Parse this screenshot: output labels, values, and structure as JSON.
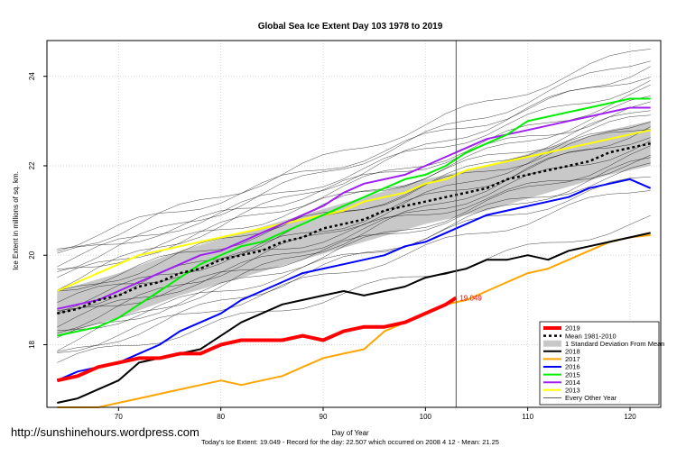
{
  "watermark": "http://sunshinehours.wordpress.com",
  "footer": "Today's Ice Extent: 19.049  - Record for the day: 22.507 which occurred on 2008 4 12  - Mean: 21.25",
  "marker_label": "19.049",
  "colors": {
    "y2019": "#ff0000",
    "y2018": "#000000",
    "y2017": "#ffa500",
    "y2016": "#0000ff",
    "y2015": "#00ee00",
    "y2014": "#a020f0",
    "y2013": "#ffff00",
    "other": "#000000",
    "band": "#c8c8c8"
  },
  "chart_data": {
    "type": "line",
    "title": "Global Sea Ice Extent Day 103 1978 to 2019",
    "xlabel": "Day of Year",
    "ylabel": "Ice Extent in millions of sq. km.",
    "xlim": [
      63,
      123
    ],
    "ylim": [
      16.6,
      24.8
    ],
    "x_ticks": [
      70,
      80,
      90,
      100,
      110,
      120
    ],
    "y_ticks": [
      18,
      20,
      22,
      24
    ],
    "vline_x": 103,
    "grid": true,
    "legend_position": "bottom-right",
    "legend": [
      "2019",
      "Mean 1981-2010",
      "1 Standard Deviation From Mean",
      "2018",
      "2017",
      "2016",
      "2015",
      "2014",
      "2013",
      "Every Other Year"
    ],
    "series": [
      {
        "name": "2019",
        "x": [
          64,
          66,
          68,
          70,
          72,
          74,
          76,
          78,
          80,
          82,
          84,
          86,
          88,
          90,
          92,
          94,
          96,
          98,
          100,
          102,
          103
        ],
        "y": [
          17.2,
          17.3,
          17.5,
          17.6,
          17.7,
          17.7,
          17.8,
          17.8,
          18.0,
          18.1,
          18.1,
          18.1,
          18.2,
          18.1,
          18.3,
          18.4,
          18.4,
          18.5,
          18.7,
          18.9,
          19.05
        ]
      },
      {
        "name": "2018",
        "x": [
          64,
          66,
          68,
          70,
          72,
          74,
          76,
          78,
          80,
          82,
          84,
          86,
          88,
          90,
          92,
          94,
          96,
          98,
          100,
          102,
          104,
          106,
          108,
          110,
          112,
          114,
          116,
          118,
          120,
          122
        ],
        "y": [
          16.7,
          16.8,
          17.0,
          17.2,
          17.6,
          17.7,
          17.8,
          17.9,
          18.2,
          18.5,
          18.7,
          18.9,
          19.0,
          19.1,
          19.2,
          19.1,
          19.2,
          19.3,
          19.5,
          19.6,
          19.7,
          19.9,
          19.9,
          20.0,
          19.9,
          20.1,
          20.2,
          20.3,
          20.4,
          20.5
        ]
      },
      {
        "name": "2017",
        "x": [
          64,
          66,
          68,
          70,
          72,
          74,
          76,
          78,
          80,
          82,
          84,
          86,
          88,
          90,
          92,
          94,
          96,
          98,
          100,
          102,
          104,
          106,
          108,
          110,
          112,
          114,
          116,
          118,
          120,
          122
        ],
        "y": [
          16.6,
          16.6,
          16.6,
          16.7,
          16.8,
          16.9,
          17.0,
          17.1,
          17.2,
          17.1,
          17.2,
          17.3,
          17.5,
          17.7,
          17.8,
          17.9,
          18.3,
          18.5,
          18.7,
          18.9,
          19.0,
          19.2,
          19.4,
          19.6,
          19.7,
          19.9,
          20.1,
          20.3,
          20.4,
          20.45
        ]
      },
      {
        "name": "2016",
        "x": [
          64,
          66,
          68,
          70,
          72,
          74,
          76,
          78,
          80,
          82,
          84,
          86,
          88,
          90,
          92,
          94,
          96,
          98,
          100,
          102,
          104,
          106,
          108,
          110,
          112,
          114,
          116,
          118,
          120,
          122
        ],
        "y": [
          17.2,
          17.4,
          17.5,
          17.6,
          17.8,
          18.0,
          18.3,
          18.5,
          18.7,
          19.0,
          19.2,
          19.4,
          19.6,
          19.7,
          19.8,
          19.9,
          20.0,
          20.2,
          20.3,
          20.5,
          20.7,
          20.9,
          21.0,
          21.1,
          21.2,
          21.3,
          21.5,
          21.6,
          21.7,
          21.5
        ]
      },
      {
        "name": "2015",
        "x": [
          64,
          66,
          68,
          70,
          72,
          74,
          76,
          78,
          80,
          82,
          84,
          86,
          88,
          90,
          92,
          94,
          96,
          98,
          100,
          102,
          104,
          106,
          108,
          110,
          112,
          114,
          116,
          118,
          120,
          122
        ],
        "y": [
          18.2,
          18.3,
          18.4,
          18.6,
          18.9,
          19.2,
          19.5,
          19.8,
          20.0,
          20.2,
          20.3,
          20.5,
          20.7,
          20.9,
          21.1,
          21.3,
          21.5,
          21.7,
          21.8,
          22.0,
          22.3,
          22.5,
          22.7,
          23.0,
          23.1,
          23.2,
          23.3,
          23.4,
          23.5,
          23.5
        ]
      },
      {
        "name": "2014",
        "x": [
          64,
          66,
          68,
          70,
          72,
          74,
          76,
          78,
          80,
          82,
          84,
          86,
          88,
          90,
          92,
          94,
          96,
          98,
          100,
          102,
          104,
          106,
          108,
          110,
          112,
          114,
          116,
          118,
          120,
          122
        ],
        "y": [
          18.8,
          18.9,
          19.0,
          19.2,
          19.4,
          19.6,
          19.8,
          20.0,
          20.1,
          20.3,
          20.5,
          20.7,
          20.9,
          21.1,
          21.4,
          21.6,
          21.7,
          21.8,
          22.0,
          22.2,
          22.4,
          22.6,
          22.7,
          22.8,
          22.9,
          23.0,
          23.1,
          23.2,
          23.3,
          23.3
        ]
      },
      {
        "name": "2013",
        "x": [
          64,
          66,
          68,
          70,
          72,
          74,
          76,
          78,
          80,
          82,
          84,
          86,
          88,
          90,
          92,
          94,
          96,
          98,
          100,
          102,
          104,
          106,
          108,
          110,
          112,
          114,
          116,
          118,
          120,
          122
        ],
        "y": [
          19.2,
          19.4,
          19.6,
          19.8,
          20.0,
          20.1,
          20.2,
          20.3,
          20.4,
          20.5,
          20.6,
          20.7,
          20.8,
          20.9,
          21.0,
          21.2,
          21.3,
          21.4,
          21.6,
          21.7,
          21.9,
          22.0,
          22.1,
          22.2,
          22.3,
          22.4,
          22.5,
          22.6,
          22.7,
          22.8
        ]
      },
      {
        "name": "Mean 1981-2010",
        "x": [
          64,
          66,
          68,
          70,
          72,
          74,
          76,
          78,
          80,
          82,
          84,
          86,
          88,
          90,
          92,
          94,
          96,
          98,
          100,
          102,
          104,
          106,
          108,
          110,
          112,
          114,
          116,
          118,
          120,
          122
        ],
        "y": [
          18.7,
          18.8,
          19.0,
          19.1,
          19.3,
          19.4,
          19.6,
          19.7,
          19.9,
          20.0,
          20.1,
          20.3,
          20.4,
          20.6,
          20.7,
          20.8,
          21.0,
          21.1,
          21.2,
          21.3,
          21.4,
          21.5,
          21.7,
          21.8,
          21.9,
          22.0,
          22.1,
          22.3,
          22.4,
          22.5
        ]
      }
    ],
    "std_band": {
      "x": [
        64,
        70,
        76,
        82,
        88,
        94,
        100,
        106,
        112,
        118,
        122
      ],
      "upper": [
        19.2,
        19.6,
        20.1,
        20.5,
        20.9,
        21.3,
        21.7,
        22.0,
        22.4,
        22.8,
        23.0
      ],
      "lower": [
        18.2,
        18.6,
        19.1,
        19.5,
        19.9,
        20.3,
        20.7,
        21.0,
        21.4,
        21.8,
        22.0
      ]
    }
  }
}
